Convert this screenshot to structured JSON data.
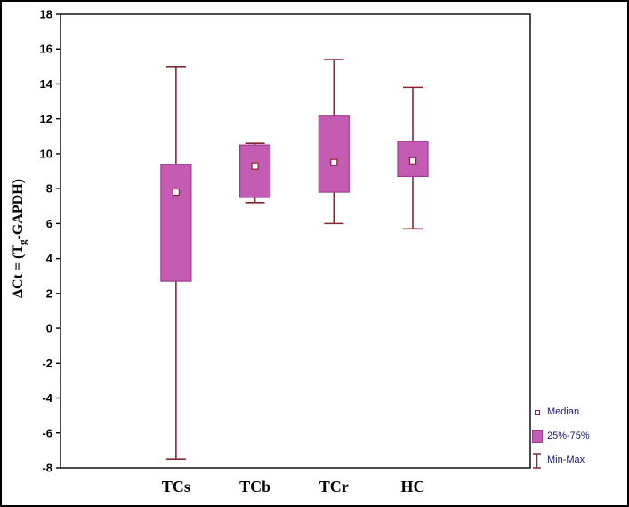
{
  "chart_data": {
    "type": "box",
    "title": "",
    "ylabel": "ΔCt = (Tg-GAPDH)",
    "ylabel_parts": {
      "pre": "ΔCt = (T",
      "sub": "g",
      "post": "-GAPDH)"
    },
    "xlabel": "",
    "ylim": [
      -8,
      18
    ],
    "ytick_step": 2,
    "yticks": [
      -8,
      -6,
      -4,
      -2,
      0,
      2,
      4,
      6,
      8,
      10,
      12,
      14,
      16,
      18
    ],
    "grid": false,
    "categories": [
      "TCs",
      "TCb",
      "TCr",
      "HC"
    ],
    "series": [
      {
        "name": "TCs",
        "median": 7.8,
        "q1": 2.7,
        "q3": 9.4,
        "min": -7.5,
        "max": 15.0
      },
      {
        "name": "TCb",
        "median": 9.3,
        "q1": 7.5,
        "q3": 10.5,
        "min": 7.2,
        "max": 10.6
      },
      {
        "name": "TCr",
        "median": 9.5,
        "q1": 7.8,
        "q3": 12.2,
        "min": 6.0,
        "max": 15.4
      },
      {
        "name": "HC",
        "median": 9.6,
        "q1": 8.7,
        "q3": 10.7,
        "min": 5.7,
        "max": 13.8
      }
    ],
    "legend": {
      "position": "bottom-right",
      "median_label": "Median",
      "box_label": "25%-75%",
      "whisker_label": "Min-Max"
    },
    "colors": {
      "box_fill": "#c45cb3",
      "box_edge": "#a03a94",
      "whisker": "#8a2630",
      "median_marker_fill": "#ffffff",
      "median_marker_edge": "#8a2630",
      "legend_text": "#191970",
      "axis": "#000000",
      "background": "#ffffff"
    }
  }
}
